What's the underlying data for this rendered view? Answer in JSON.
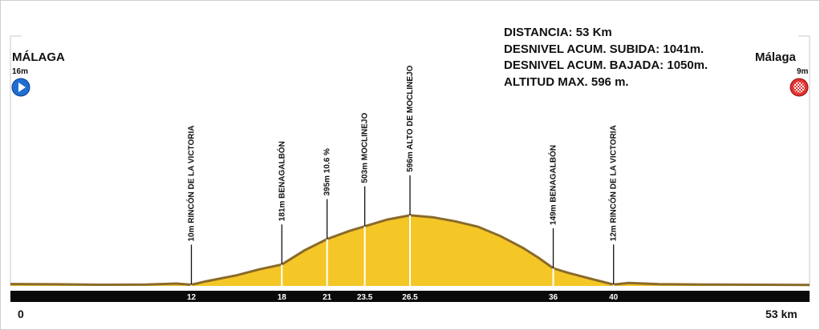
{
  "start": {
    "city": "MÁLAGA",
    "altitude": "16m",
    "icon": "play-start-icon",
    "color": "#1e6fd1"
  },
  "finish": {
    "city": "Málaga",
    "altitude": "9m",
    "icon": "checkered-finish-icon",
    "color": "#e53030"
  },
  "stats": {
    "distance": "DISTANCIA: 53 Km",
    "ascent": "DESNIVEL ACUM. SUBIDA:  1041m.",
    "descent": "DESNIVEL ACUM. BAJADA: 1050m.",
    "max_alt": "ALTITUD MAX. 596 m."
  },
  "axis": {
    "start_label": "0",
    "end_label": "53 km"
  },
  "colors": {
    "profile_fill": "#f5c726",
    "slope_dark": "#8a6a2a",
    "axis_bar": "#0a0a0a"
  },
  "chart_data": {
    "type": "area",
    "xlabel": "",
    "ylabel": "",
    "xlim": [
      0,
      53
    ],
    "ylim": [
      0,
      600
    ],
    "x": [
      0,
      3,
      6,
      9,
      11,
      12,
      13,
      15,
      16.5,
      18,
      19.5,
      21,
      22.5,
      23.5,
      25,
      26.5,
      28,
      29.5,
      31,
      32.5,
      34,
      35,
      36,
      37,
      38.5,
      40,
      41,
      43,
      46,
      50,
      53
    ],
    "y": [
      16,
      14,
      10,
      12,
      20,
      10,
      40,
      90,
      140,
      181,
      300,
      395,
      465,
      503,
      560,
      596,
      580,
      545,
      500,
      420,
      320,
      240,
      149,
      110,
      60,
      12,
      25,
      15,
      12,
      10,
      9
    ],
    "waypoints": [
      {
        "km": 12,
        "km_label": "12",
        "text": "10m  RINCÓN DE LA VICTORIA",
        "alt": 10
      },
      {
        "km": 18,
        "km_label": "18",
        "text": "181m  BENAGALBÓN",
        "alt": 181
      },
      {
        "km": 21,
        "km_label": "21",
        "text": "395m  10.6 %",
        "alt": 395
      },
      {
        "km": 23.5,
        "km_label": "23.5",
        "text": "503m  MOCLINEJO",
        "alt": 503
      },
      {
        "km": 26.5,
        "km_label": "26.5",
        "text": "596m  ALTO DE MOCLINEJO",
        "alt": 596
      },
      {
        "km": 36,
        "km_label": "36",
        "text": "149m  BENAGALBÓN",
        "alt": 149
      },
      {
        "km": 40,
        "km_label": "40",
        "text": "12m  RINCÓN DE LA VICTORIA",
        "alt": 12
      }
    ]
  }
}
